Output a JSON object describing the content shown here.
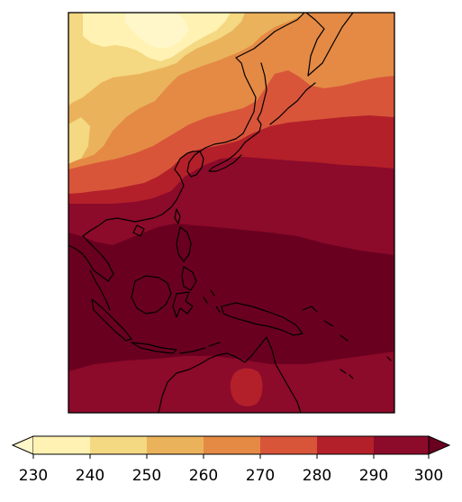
{
  "map": {
    "type": "filled-contour",
    "region_hint": "East Asia / Western Pacific / Maritime Continent / Northern Australia",
    "frame": true
  },
  "colorbar": {
    "orientation": "horizontal",
    "extend": "both",
    "ticks": [
      230,
      240,
      250,
      260,
      270,
      280,
      290,
      300
    ],
    "tick_labels": [
      "230",
      "240",
      "250",
      "260",
      "270",
      "280",
      "290",
      "300"
    ],
    "levels": [
      {
        "range": [
          230,
          240
        ],
        "color": "#fff2b2"
      },
      {
        "range": [
          240,
          250
        ],
        "color": "#f4d882"
      },
      {
        "range": [
          250,
          260
        ],
        "color": "#ebb25c"
      },
      {
        "range": [
          260,
          270
        ],
        "color": "#e48a45"
      },
      {
        "range": [
          270,
          280
        ],
        "color": "#d8553a"
      },
      {
        "range": [
          280,
          290
        ],
        "color": "#b3202a"
      },
      {
        "range": [
          290,
          300
        ],
        "color": "#8c0a2a"
      }
    ],
    "under_color": "#fff7c9",
    "over_color": "#6a0020"
  },
  "colors": {
    "lt230": "#fff7c9",
    "c230": "#fff2b2",
    "c240": "#f4d882",
    "c250": "#ebb25c",
    "c260": "#e48a45",
    "c270": "#d8553a",
    "c280": "#b3202a",
    "c290": "#8c0a2a",
    "gt300": "#6a0020"
  }
}
